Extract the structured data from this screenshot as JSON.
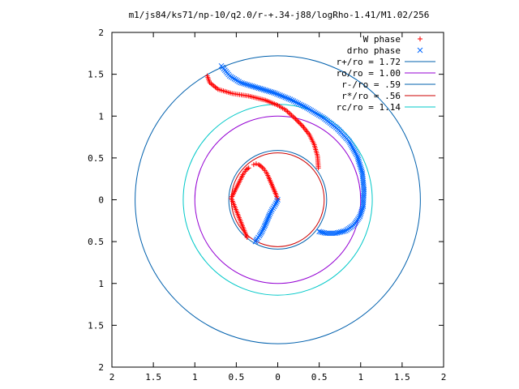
{
  "chart_data": {
    "type": "scatter",
    "title": "m1/js84/ks71/np-10/q2.0/r-+.34-j88/logRho-1.41/M1.02/256",
    "xlabel": "",
    "ylabel": "",
    "xlim": [
      -2,
      2
    ],
    "ylim": [
      -2,
      2
    ],
    "x_tick_values": [
      -2,
      -1.5,
      -1,
      -0.5,
      0,
      0.5,
      1,
      1.5,
      2
    ],
    "x_tick_labels": [
      "2",
      "1.5",
      "1",
      "0.5",
      "0",
      "0.5",
      "1",
      "1.5",
      "2"
    ],
    "y_tick_values": [
      2,
      1.5,
      1,
      0.5,
      0,
      -0.5,
      -1,
      -1.5,
      -2
    ],
    "y_tick_labels": [
      "2",
      "1.5",
      "1",
      "0.5",
      "0",
      "0.5",
      "1",
      "1.5",
      "2"
    ],
    "grid": false,
    "legend_position": "top-right",
    "point_series": [
      {
        "name": "W phase",
        "marker": "plus",
        "color": "#ff0000",
        "segments": [
          [
            [
              0,
              0
            ],
            [
              -0.02,
              0.06
            ],
            [
              -0.05,
              0.13
            ],
            [
              -0.08,
              0.2
            ],
            [
              -0.11,
              0.27
            ],
            [
              -0.14,
              0.33
            ],
            [
              -0.17,
              0.37
            ],
            [
              -0.2,
              0.4
            ],
            [
              -0.23,
              0.42
            ],
            [
              -0.26,
              0.43
            ],
            [
              -0.29,
              0.42
            ]
          ],
          [
            [
              -0.35,
              0.38
            ],
            [
              -0.38,
              0.36
            ],
            [
              -0.42,
              0.3
            ],
            [
              -0.56,
              0.02
            ],
            [
              -0.37,
              -0.45
            ]
          ],
          [
            [
              -0.85,
              1.48
            ],
            [
              -0.82,
              1.4
            ],
            [
              -0.72,
              1.32
            ],
            [
              -0.55,
              1.27
            ],
            [
              -0.35,
              1.24
            ],
            [
              -0.15,
              1.19
            ],
            [
              0,
              1.13
            ],
            [
              0.1,
              1.07
            ],
            [
              0.2,
              0.98
            ],
            [
              0.3,
              0.88
            ],
            [
              0.38,
              0.78
            ],
            [
              0.44,
              0.66
            ],
            [
              0.48,
              0.52
            ],
            [
              0.49,
              0.38
            ]
          ]
        ]
      },
      {
        "name": "drho phase",
        "marker": "cross",
        "color": "#0066ff",
        "segments": [
          [
            [
              0,
              0
            ],
            [
              -0.03,
              -0.06
            ],
            [
              -0.07,
              -0.12
            ],
            [
              -0.1,
              -0.18
            ],
            [
              -0.13,
              -0.25
            ],
            [
              -0.16,
              -0.32
            ],
            [
              -0.19,
              -0.38
            ],
            [
              -0.22,
              -0.43
            ],
            [
              -0.25,
              -0.47
            ],
            [
              -0.27,
              -0.5
            ]
          ],
          [
            [
              -0.68,
              1.6
            ],
            [
              -0.58,
              1.48
            ],
            [
              -0.45,
              1.4
            ],
            [
              -0.25,
              1.34
            ],
            [
              -0.05,
              1.28
            ],
            [
              0.15,
              1.2
            ],
            [
              0.35,
              1.1
            ],
            [
              0.55,
              0.98
            ],
            [
              0.72,
              0.85
            ],
            [
              0.86,
              0.7
            ],
            [
              0.96,
              0.52
            ],
            [
              1.02,
              0.32
            ],
            [
              1.04,
              0.12
            ],
            [
              1.03,
              -0.08
            ],
            [
              0.99,
              -0.2
            ],
            [
              0.92,
              -0.3
            ],
            [
              0.82,
              -0.37
            ],
            [
              0.7,
              -0.4
            ],
            [
              0.58,
              -0.4
            ],
            [
              0.5,
              -0.38
            ]
          ]
        ]
      }
    ],
    "circle_series": [
      {
        "name": "r+/ro = 1.72",
        "radius": 1.72,
        "color": "#0060ad"
      },
      {
        "name": "ro/ro = 1.00",
        "radius": 1.0,
        "color": "#9400d3"
      },
      {
        "name": "r-/ro = .59",
        "radius": 0.59,
        "color": "#0060ad"
      },
      {
        "name": "r*/ro = .56",
        "radius": 0.56,
        "color": "#cc0000"
      },
      {
        "name": "rc/ro = 1.14",
        "radius": 1.14,
        "color": "#00c8c8"
      }
    ]
  }
}
